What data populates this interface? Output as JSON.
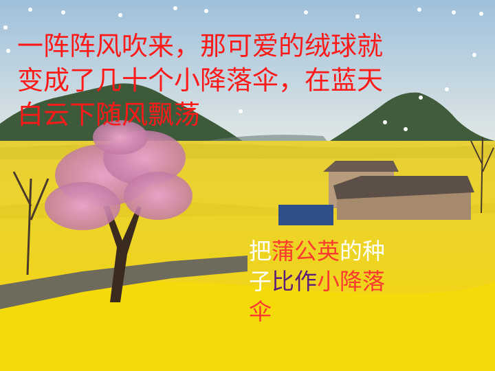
{
  "headline": {
    "lines": [
      "一阵阵风吹来，那可爱的绒球就",
      "变成了几十个小降落伞，在蓝天",
      "白云下随风飘荡"
    ],
    "color": "#ff1a1a"
  },
  "caption": {
    "line1": [
      {
        "text": "把",
        "color": "#ffffff"
      },
      {
        "text": "蒲公英",
        "color": "#ff3b2f"
      },
      {
        "text": "的种",
        "color": "#ffffff"
      }
    ],
    "line2": [
      {
        "text": "子",
        "color": "#ffffff"
      },
      {
        "text": "比作",
        "color": "#5a1e7a"
      },
      {
        "text": "小降落",
        "color": "#ff3b2f"
      }
    ],
    "line3": [
      {
        "text": "伞",
        "color": "#ff3b2f"
      }
    ]
  },
  "colors": {
    "sky_top": "#a9c7de",
    "sky_bottom": "#dfe6e6",
    "field": "#f2d21a",
    "mountain": "#3e5a3a",
    "blossom": "#d98bb8"
  }
}
